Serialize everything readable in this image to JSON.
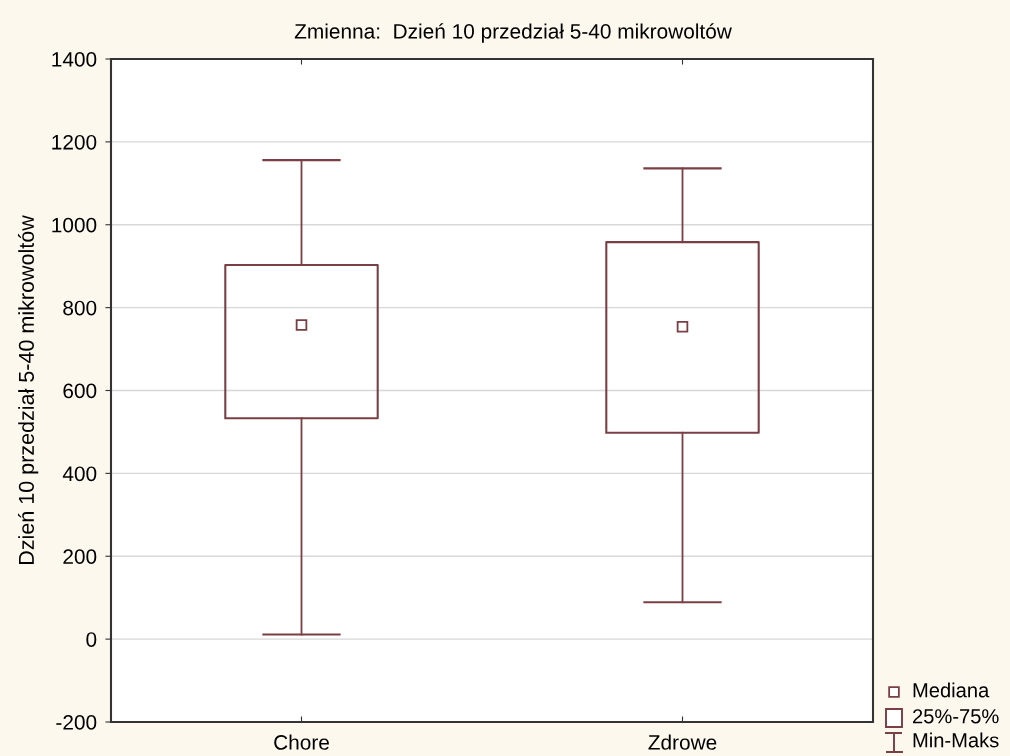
{
  "chart_data": {
    "type": "box",
    "title": "Zmienna:  Dzień 10 przedział 5-40 mikrowoltów",
    "ylabel": "Dzień 10 przedział 5-40 mikrowoltów",
    "categories": [
      "Chore",
      "Zdrowe"
    ],
    "boxes": [
      {
        "low": 11,
        "q1": 533,
        "median": 758,
        "q3": 903,
        "high": 1156
      },
      {
        "low": 89,
        "q1": 498,
        "median": 754,
        "q3": 958,
        "high": 1136
      }
    ],
    "color": "#7a3f45",
    "marker": "square",
    "ylim": [
      -200,
      1400
    ],
    "yticks": [
      -200,
      0,
      200,
      400,
      600,
      800,
      1000,
      1200,
      1400
    ],
    "grid": "y",
    "annotations": [
      "Mediana",
      "25%-75%",
      "Min-Maks"
    ]
  }
}
